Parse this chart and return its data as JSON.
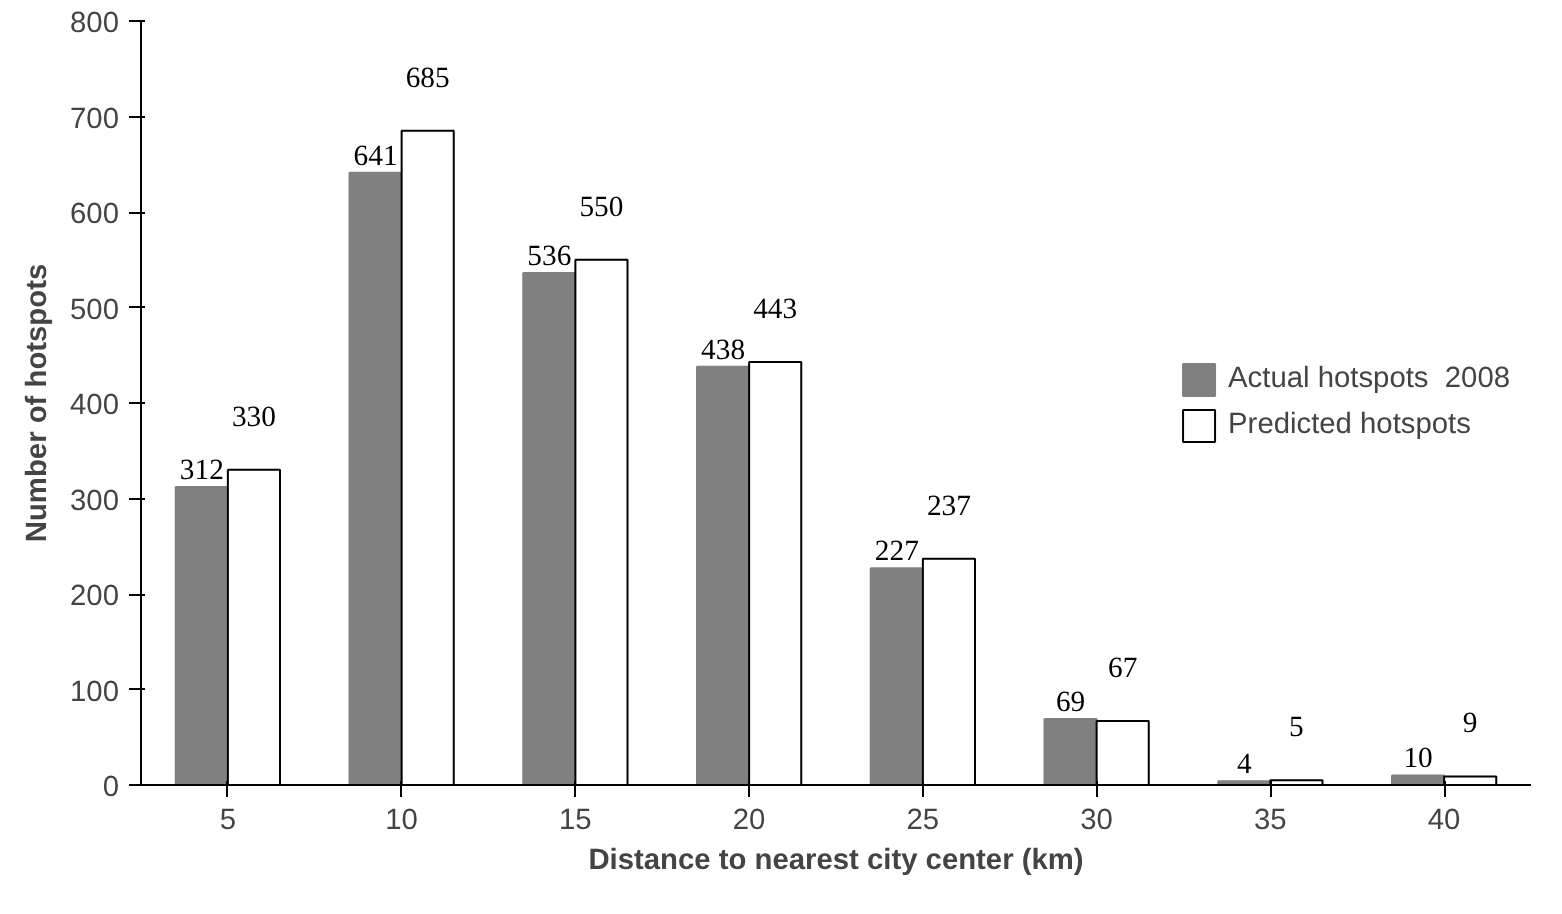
{
  "chart_data": {
    "type": "bar",
    "xlabel": "Distance to nearest city center (km)",
    "ylabel": "Number of hotspots",
    "categories": [
      "5",
      "10",
      "15",
      "20",
      "25",
      "30",
      "35",
      "40"
    ],
    "series": [
      {
        "name": "Actual hotspots  2008",
        "color": "#808080",
        "values": [
          312,
          641,
          536,
          438,
          227,
          69,
          4,
          10
        ]
      },
      {
        "name": "Predicted hotspots",
        "color": "#ffffff",
        "values": [
          330,
          685,
          550,
          443,
          237,
          67,
          5,
          9
        ]
      }
    ],
    "ylim": [
      0,
      800
    ],
    "yticks": [
      0,
      100,
      200,
      300,
      400,
      500,
      600,
      700,
      800
    ],
    "grid": false,
    "legend": "right",
    "data_labels": true
  }
}
